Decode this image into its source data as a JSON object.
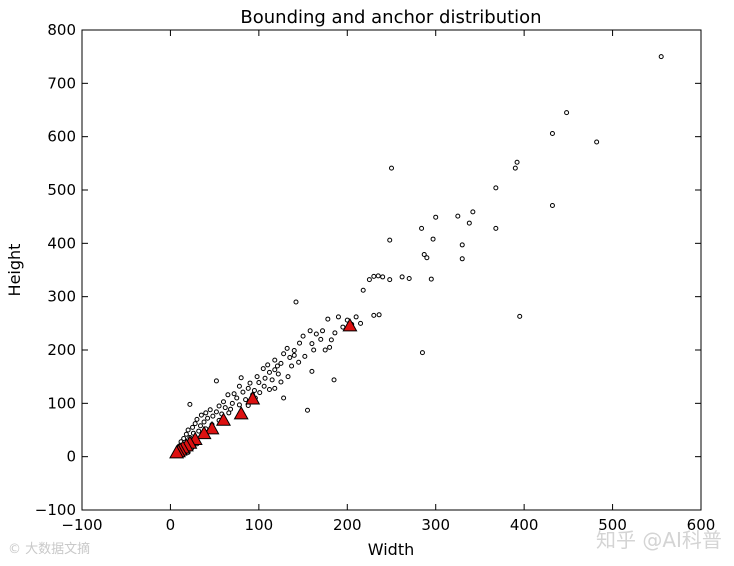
{
  "chart_data": {
    "type": "scatter",
    "title": "Bounding and anchor distribution",
    "xlabel": "Width",
    "ylabel": "Height",
    "xlim": [
      -100,
      600
    ],
    "ylim": [
      -100,
      800
    ],
    "x_ticks": [
      -100,
      0,
      100,
      200,
      300,
      400,
      500,
      600
    ],
    "y_ticks": [
      -100,
      0,
      100,
      200,
      300,
      400,
      500,
      600,
      700,
      800
    ],
    "x_tick_labels": [
      "−100",
      "0",
      "100",
      "200",
      "300",
      "400",
      "500",
      "600"
    ],
    "y_tick_labels": [
      "−100",
      "0",
      "100",
      "200",
      "300",
      "400",
      "500",
      "600",
      "700",
      "800"
    ],
    "grid": false,
    "series": [
      {
        "marker": "circle",
        "color": "#ffffff",
        "edge_color": "#000000",
        "points": [
          [
            555,
            750
          ],
          [
            448,
            645
          ],
          [
            432,
            606
          ],
          [
            482,
            590
          ],
          [
            392,
            552
          ],
          [
            390,
            541
          ],
          [
            368,
            504
          ],
          [
            250,
            541
          ],
          [
            432,
            471
          ],
          [
            342,
            459
          ],
          [
            300,
            449
          ],
          [
            325,
            451
          ],
          [
            338,
            438
          ],
          [
            368,
            428
          ],
          [
            284,
            428
          ],
          [
            248,
            406
          ],
          [
            297,
            408
          ],
          [
            330,
            397
          ],
          [
            287,
            379
          ],
          [
            290,
            373
          ],
          [
            330,
            371
          ],
          [
            240,
            337
          ],
          [
            230,
            338
          ],
          [
            235,
            339
          ],
          [
            262,
            337
          ],
          [
            225,
            332
          ],
          [
            270,
            334
          ],
          [
            248,
            332
          ],
          [
            295,
            333
          ],
          [
            218,
            312
          ],
          [
            142,
            290
          ],
          [
            395,
            263
          ],
          [
            236,
            266
          ],
          [
            285,
            195
          ],
          [
            178,
            258
          ],
          [
            190,
            262
          ],
          [
            200,
            256
          ],
          [
            205,
            248
          ],
          [
            195,
            243
          ],
          [
            172,
            236
          ],
          [
            165,
            230
          ],
          [
            186,
            232
          ],
          [
            158,
            236
          ],
          [
            150,
            226
          ],
          [
            170,
            220
          ],
          [
            182,
            219
          ],
          [
            160,
            212
          ],
          [
            146,
            213
          ],
          [
            180,
            205
          ],
          [
            162,
            200
          ],
          [
            140,
            199
          ],
          [
            132,
            203
          ],
          [
            128,
            193
          ],
          [
            140,
            190
          ],
          [
            135,
            186
          ],
          [
            118,
            181
          ],
          [
            125,
            175
          ],
          [
            110,
            172
          ],
          [
            137,
            170
          ],
          [
            118,
            163
          ],
          [
            105,
            165
          ],
          [
            112,
            158
          ],
          [
            122,
            155
          ],
          [
            98,
            150
          ],
          [
            107,
            147
          ],
          [
            115,
            144
          ],
          [
            52,
            142
          ],
          [
            80,
            148
          ],
          [
            90,
            138
          ],
          [
            100,
            139
          ],
          [
            106,
            132
          ],
          [
            78,
            132
          ],
          [
            88,
            128
          ],
          [
            95,
            124
          ],
          [
            82,
            121
          ],
          [
            72,
            118
          ],
          [
            65,
            116
          ],
          [
            75,
            110
          ],
          [
            85,
            107
          ],
          [
            60,
            103
          ],
          [
            70,
            100
          ],
          [
            78,
            97
          ],
          [
            22,
            98
          ],
          [
            55,
            95
          ],
          [
            62,
            92
          ],
          [
            68,
            89
          ],
          [
            45,
            88
          ],
          [
            52,
            84
          ],
          [
            58,
            80
          ],
          [
            40,
            82
          ],
          [
            35,
            78
          ],
          [
            48,
            76
          ],
          [
            42,
            72
          ],
          [
            30,
            70
          ],
          [
            55,
            68
          ],
          [
            38,
            65
          ],
          [
            28,
            62
          ],
          [
            47,
            60
          ],
          [
            34,
            58
          ],
          [
            25,
            55
          ],
          [
            40,
            52
          ],
          [
            20,
            50
          ],
          [
            32,
            48
          ],
          [
            26,
            44
          ],
          [
            18,
            42
          ],
          [
            36,
            40
          ],
          [
            22,
            36
          ],
          [
            15,
            34
          ],
          [
            28,
            32
          ],
          [
            12,
            28
          ],
          [
            20,
            26
          ],
          [
            30,
            24
          ],
          [
            10,
            20
          ],
          [
            16,
            18
          ],
          [
            24,
            16
          ],
          [
            8,
            12
          ],
          [
            14,
            10
          ],
          [
            20,
            8
          ],
          [
            6,
            6
          ],
          [
            11,
            4
          ],
          [
            5,
            2
          ],
          [
            185,
            144
          ],
          [
            128,
            110
          ],
          [
            155,
            87
          ],
          [
            215,
            250
          ],
          [
            230,
            265
          ],
          [
            202,
            240
          ],
          [
            145,
            177
          ],
          [
            160,
            160
          ],
          [
            133,
            150
          ],
          [
            96,
            110
          ],
          [
            118,
            128
          ],
          [
            88,
            96
          ],
          [
            66,
            82
          ],
          [
            101,
            120
          ],
          [
            125,
            140
          ],
          [
            210,
            262
          ],
          [
            152,
            188
          ],
          [
            175,
            200
          ],
          [
            121,
            170
          ],
          [
            112,
            126
          ],
          [
            93,
            116
          ]
        ]
      },
      {
        "marker": "triangle",
        "color": "#dd1111",
        "edge_color": "#000000",
        "points": [
          [
            203,
            245
          ],
          [
            93,
            108
          ],
          [
            80,
            80
          ],
          [
            60,
            68
          ],
          [
            47,
            52
          ],
          [
            38,
            43
          ],
          [
            28,
            32
          ],
          [
            22,
            25
          ],
          [
            18,
            20
          ],
          [
            14,
            16
          ],
          [
            11,
            12
          ],
          [
            9,
            9
          ],
          [
            7,
            7
          ]
        ]
      }
    ]
  },
  "watermarks": {
    "left": "© 大数据文摘",
    "right": "知乎 @AI科普"
  }
}
